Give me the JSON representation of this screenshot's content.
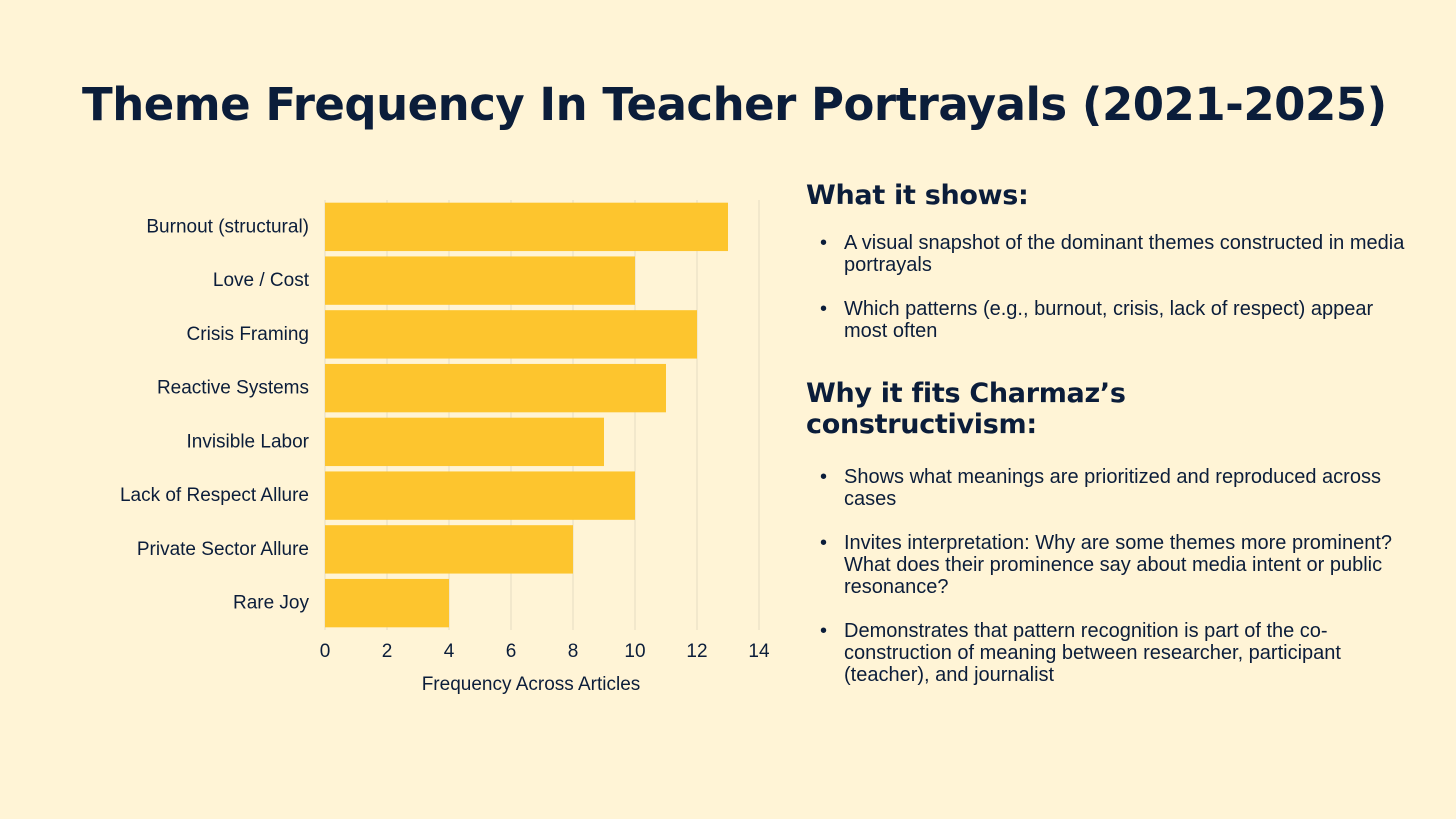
{
  "title": "Theme Frequency In Teacher Portrayals (2021-2025)",
  "colors": {
    "background": "#FFF4D6",
    "bar": "#FDC52E",
    "text": "#0B1D3A",
    "grid": "#E6DCC3"
  },
  "chart_data": {
    "type": "bar",
    "orientation": "horizontal",
    "categories": [
      "Burnout (structural)",
      "Love / Cost",
      "Crisis Framing",
      "Reactive Systems",
      "Invisible Labor",
      "Lack of Respect Allure",
      "Private Sector Allure",
      "Rare Joy"
    ],
    "values": [
      13,
      10,
      12,
      11,
      9,
      10,
      8,
      4
    ],
    "xlabel": "Frequency Across Articles",
    "ylabel": "",
    "xlim": [
      0,
      14
    ],
    "xticks": [
      0,
      2,
      4,
      6,
      8,
      10,
      12,
      14
    ],
    "grid": "vertical",
    "legend": "none"
  },
  "panel": {
    "shows": {
      "heading": "What it shows:",
      "bullets": [
        "A visual snapshot of the dominant themes constructed in media portrayals",
        "Which patterns (e.g., burnout, crisis, lack of respect) appear most often"
      ]
    },
    "why": {
      "heading_line1": "Why it fits Charmaz’s",
      "heading_line2": "constructivism:",
      "bullets": [
        "Shows what meanings are prioritized and reproduced across cases",
        "Invites interpretation: Why are some themes more prominent? What does their prominence say about media intent or public resonance?",
        "Demonstrates that pattern recognition is part of the co-construction of meaning between researcher, participant (teacher), and journalist"
      ]
    }
  }
}
